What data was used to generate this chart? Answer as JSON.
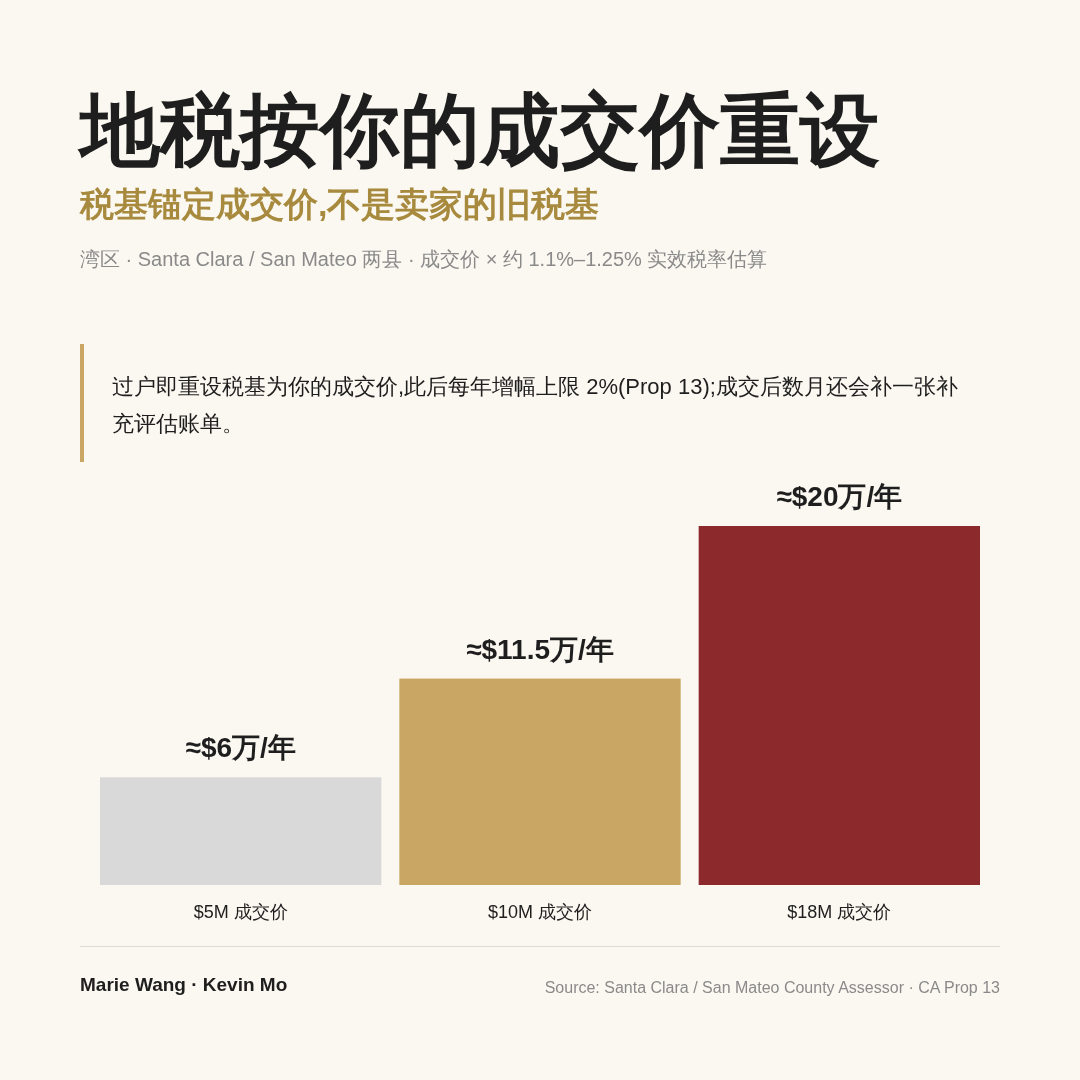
{
  "chart_data": {
    "type": "bar",
    "title": "地税按你的成交价重设",
    "subtitle": "税基锚定成交价,不是卖家的旧税基",
    "categories": [
      "$5M 成交价",
      "$10M 成交价",
      "$18M 成交价"
    ],
    "values": [
      6,
      11.5,
      20
    ],
    "value_labels": [
      "≈$6万/年",
      "≈$11.5万/年",
      "≈$20万/年"
    ],
    "colors": [
      "#d9d9d9",
      "#c9a663",
      "#8b292c"
    ],
    "annotations": [
      "湾区 · Santa Clara / San Mateo 两县 · 成交价 × 约 1.1%–1.25% 实效税率估算",
      "过户即重设税基为你的成交价,此后每年增幅上限 2%(Prop 13);成交后数月还会补一张补充评估账单。",
      "Marie Wang · Kevin Mo",
      "Source: Santa Clara / San Mateo County Assessor · CA Prop 13"
    ]
  }
}
